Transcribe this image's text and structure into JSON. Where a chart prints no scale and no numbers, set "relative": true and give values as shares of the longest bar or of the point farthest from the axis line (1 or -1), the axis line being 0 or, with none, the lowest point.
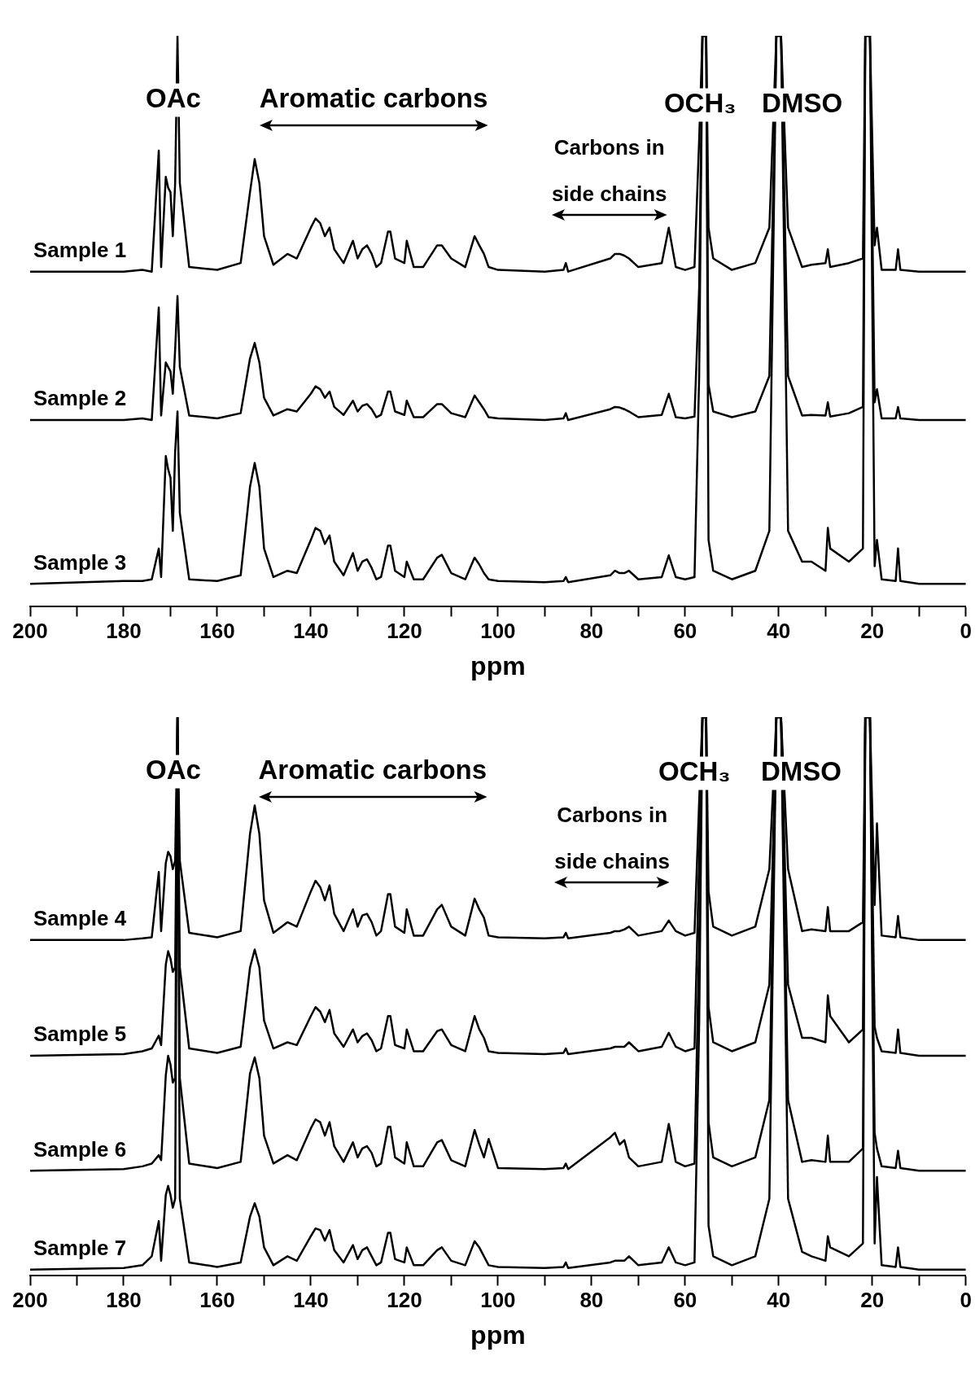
{
  "chart_data": [
    {
      "type": "line",
      "xlabel": "ppm",
      "relative": true,
      "xlim": [
        200,
        0
      ],
      "xticks": [
        200,
        {
          "value": 190,
          "label": null
        },
        180,
        {
          "value": 170,
          "label": null
        },
        160,
        {
          "value": 150,
          "label": null
        },
        140,
        {
          "value": 130,
          "label": null
        },
        120,
        {
          "value": 110,
          "label": null
        },
        100,
        {
          "value": 90,
          "label": null
        },
        80,
        {
          "value": 70,
          "label": null
        },
        60,
        {
          "value": 50,
          "label": null
        },
        40,
        {
          "value": 30,
          "label": null
        },
        20,
        {
          "value": 10,
          "label": null
        },
        0
      ],
      "annotations": [
        "OAc",
        "Aromatic carbons",
        "OCH₃",
        "DMSO",
        "Carbons in\nside chains"
      ],
      "x": [
        200,
        180,
        176,
        174,
        172.5,
        172,
        171,
        170.5,
        170,
        169.5,
        169,
        168.5,
        168,
        166,
        160,
        155,
        153,
        152,
        151,
        150,
        148,
        145,
        143,
        140,
        139,
        138,
        137,
        136,
        135,
        133,
        131,
        130,
        129,
        128,
        127,
        126,
        125,
        123.5,
        123,
        122,
        120,
        119.5,
        118,
        116,
        113,
        112,
        110,
        107,
        105,
        104,
        103,
        102,
        100,
        90,
        86,
        85.5,
        85,
        76,
        75,
        74,
        73,
        72,
        70,
        65,
        63.5,
        62,
        60,
        58,
        57,
        56.3,
        55.5,
        55,
        54,
        50,
        45,
        42,
        40.5,
        39.5,
        38,
        35,
        33,
        30,
        29.5,
        29,
        25,
        22,
        21.5,
        21,
        20.5,
        19.5,
        19,
        18,
        15,
        14.5,
        14,
        10,
        0
      ],
      "series": [
        {
          "name": "Sample 1",
          "color": "#000000",
          "values": [
            0.587,
            0.587,
            0.59,
            0.587,
            0.799,
            0.595,
            0.753,
            0.734,
            0.726,
            0.649,
            0.742,
            1,
            0.742,
            0.595,
            0.59,
            0.602,
            0.726,
            0.784,
            0.742,
            0.649,
            0.599,
            0.618,
            0.61,
            0.664,
            0.68,
            0.672,
            0.649,
            0.664,
            0.626,
            0.602,
            0.641,
            0.61,
            0.626,
            0.633,
            0.618,
            0.595,
            0.602,
            0.657,
            0.657,
            0.61,
            0.602,
            0.641,
            0.595,
            0.595,
            0.633,
            0.633,
            0.61,
            0.595,
            0.649,
            0.633,
            0.618,
            0.595,
            0.59,
            0.587,
            0.59,
            0.602,
            0.587,
            0.61,
            0.618,
            0.618,
            0.615,
            0.61,
            0.595,
            0.602,
            0.664,
            0.595,
            0.59,
            0.595,
            0.819,
            1,
            1,
            0.664,
            0.61,
            0.59,
            0.602,
            0.664,
            1,
            1,
            0.664,
            0.595,
            0.599,
            0.602,
            0.626,
            0.595,
            0.602,
            0.61,
            1,
            1,
            1,
            0.633,
            0.664,
            0.59,
            0.59,
            0.626,
            0.59,
            0.587,
            0.587
          ]
        },
        {
          "name": "Sample 2",
          "color": "#000000",
          "values": [
            0.327,
            0.327,
            0.33,
            0.327,
            0.524,
            0.335,
            0.428,
            0.42,
            0.412,
            0.373,
            0.451,
            0.544,
            0.42,
            0.335,
            0.33,
            0.339,
            0.435,
            0.462,
            0.428,
            0.366,
            0.335,
            0.346,
            0.342,
            0.373,
            0.386,
            0.381,
            0.366,
            0.377,
            0.35,
            0.336,
            0.361,
            0.342,
            0.352,
            0.355,
            0.346,
            0.332,
            0.336,
            0.377,
            0.377,
            0.342,
            0.336,
            0.361,
            0.332,
            0.332,
            0.355,
            0.355,
            0.339,
            0.332,
            0.37,
            0.358,
            0.346,
            0.332,
            0.33,
            0.327,
            0.33,
            0.339,
            0.327,
            0.346,
            0.35,
            0.349,
            0.346,
            0.342,
            0.332,
            0.336,
            0.373,
            0.332,
            0.33,
            0.333,
            0.559,
            1,
            1,
            0.389,
            0.342,
            0.332,
            0.342,
            0.404,
            1,
            1,
            0.404,
            0.335,
            0.336,
            0.335,
            0.358,
            0.333,
            0.339,
            0.35,
            1,
            1,
            1,
            0.358,
            0.381,
            0.33,
            0.33,
            0.35,
            0.33,
            0.327,
            0.327
          ]
        },
        {
          "name": "Sample 3",
          "color": "#000000",
          "values": [
            0.04,
            0.045,
            0.045,
            0.048,
            0.102,
            0.052,
            0.264,
            0.241,
            0.226,
            0.133,
            0.272,
            0.342,
            0.164,
            0.048,
            0.045,
            0.055,
            0.21,
            0.252,
            0.21,
            0.102,
            0.052,
            0.063,
            0.059,
            0.117,
            0.138,
            0.133,
            0.11,
            0.125,
            0.079,
            0.055,
            0.094,
            0.063,
            0.079,
            0.083,
            0.068,
            0.048,
            0.052,
            0.107,
            0.107,
            0.063,
            0.052,
            0.079,
            0.048,
            0.048,
            0.086,
            0.091,
            0.059,
            0.048,
            0.086,
            0.074,
            0.059,
            0.048,
            0.045,
            0.043,
            0.045,
            0.052,
            0.043,
            0.055,
            0.063,
            0.059,
            0.059,
            0.063,
            0.048,
            0.052,
            0.09,
            0.052,
            0.048,
            0.052,
            0.404,
            1,
            1,
            0.117,
            0.063,
            0.048,
            0.063,
            0.133,
            1,
            1,
            0.133,
            0.079,
            0.079,
            0.063,
            0.138,
            0.102,
            0.079,
            0.102,
            1,
            1,
            1,
            0.071,
            0.117,
            0.048,
            0.045,
            0.102,
            0.045,
            0.04,
            0.04
          ]
        }
      ]
    },
    {
      "type": "line",
      "xlabel": "ppm",
      "relative": true,
      "xlim": [
        200,
        0
      ],
      "xticks": [
        200,
        {
          "value": 190,
          "label": null
        },
        180,
        {
          "value": 170,
          "label": null
        },
        160,
        {
          "value": 150,
          "label": null
        },
        140,
        {
          "value": 130,
          "label": null
        },
        120,
        {
          "value": 110,
          "label": null
        },
        100,
        {
          "value": 90,
          "label": null
        },
        80,
        {
          "value": 70,
          "label": null
        },
        60,
        {
          "value": 50,
          "label": null
        },
        40,
        {
          "value": 30,
          "label": null
        },
        20,
        {
          "value": 10,
          "label": null
        },
        0
      ],
      "annotations": [
        "OAc",
        "Aromatic carbons",
        "OCH₃",
        "DMSO",
        "Carbons in\nside chains"
      ],
      "x": [
        200,
        180,
        176,
        174,
        172.5,
        172,
        171,
        170.5,
        170,
        169.5,
        169,
        168.5,
        168,
        166,
        160,
        155,
        153,
        152,
        151,
        150,
        148,
        145,
        143,
        140,
        139,
        138,
        137,
        136,
        135,
        133,
        131,
        130,
        129,
        128,
        127,
        126,
        125,
        123.5,
        123,
        122,
        120,
        119.5,
        118,
        116,
        113,
        112,
        110,
        107,
        105,
        104,
        103,
        102,
        100,
        90,
        86,
        85.5,
        85,
        76,
        75,
        74,
        73,
        72,
        70,
        65,
        63.5,
        62,
        60,
        58,
        57,
        56.3,
        55.5,
        55,
        54,
        50,
        45,
        42,
        40.5,
        39.5,
        38,
        35,
        33,
        30,
        29.5,
        29,
        25,
        22,
        21.5,
        21,
        20.5,
        19.5,
        19,
        18,
        15,
        14.5,
        14,
        10,
        0
      ],
      "series": [
        {
          "name": "Sample 4",
          "color": "#000000",
          "values": [
            0.601,
            0.601,
            0.604,
            0.606,
            0.723,
            0.617,
            0.739,
            0.759,
            0.751,
            0.728,
            0.743,
            1,
            0.743,
            0.614,
            0.606,
            0.617,
            0.791,
            0.842,
            0.791,
            0.672,
            0.614,
            0.633,
            0.625,
            0.688,
            0.707,
            0.696,
            0.672,
            0.699,
            0.648,
            0.617,
            0.656,
            0.625,
            0.645,
            0.648,
            0.633,
            0.609,
            0.617,
            0.683,
            0.683,
            0.625,
            0.614,
            0.656,
            0.609,
            0.609,
            0.656,
            0.664,
            0.625,
            0.609,
            0.675,
            0.656,
            0.641,
            0.609,
            0.606,
            0.604,
            0.606,
            0.614,
            0.604,
            0.614,
            0.617,
            0.617,
            0.62,
            0.625,
            0.609,
            0.617,
            0.636,
            0.617,
            0.609,
            0.614,
            0.85,
            1,
            1,
            0.688,
            0.625,
            0.609,
            0.625,
            0.728,
            1,
            1,
            0.728,
            0.617,
            0.62,
            0.617,
            0.66,
            0.617,
            0.617,
            0.633,
            1,
            1,
            1,
            0.664,
            0.81,
            0.609,
            0.606,
            0.644,
            0.606,
            0.601,
            0.601
          ]
        },
        {
          "name": "Sample 5",
          "color": "#000000",
          "values": [
            0.394,
            0.397,
            0.402,
            0.407,
            0.43,
            0.413,
            0.557,
            0.581,
            0.568,
            0.544,
            0.552,
            1,
            0.552,
            0.407,
            0.399,
            0.41,
            0.552,
            0.584,
            0.552,
            0.457,
            0.407,
            0.418,
            0.413,
            0.465,
            0.481,
            0.473,
            0.454,
            0.476,
            0.434,
            0.41,
            0.441,
            0.418,
            0.429,
            0.434,
            0.422,
            0.402,
            0.407,
            0.465,
            0.465,
            0.413,
            0.407,
            0.441,
            0.402,
            0.402,
            0.438,
            0.441,
            0.413,
            0.402,
            0.465,
            0.441,
            0.426,
            0.402,
            0.399,
            0.397,
            0.399,
            0.407,
            0.397,
            0.407,
            0.41,
            0.41,
            0.41,
            0.418,
            0.402,
            0.41,
            0.435,
            0.41,
            0.402,
            0.407,
            0.75,
            1,
            1,
            0.481,
            0.418,
            0.402,
            0.418,
            0.521,
            1,
            1,
            0.521,
            0.426,
            0.426,
            0.418,
            0.502,
            0.465,
            0.418,
            0.441,
            1,
            1,
            1,
            0.446,
            0.426,
            0.402,
            0.399,
            0.441,
            0.399,
            0.394,
            0.394
          ]
        },
        {
          "name": "Sample 6",
          "color": "#000000",
          "values": [
            0.188,
            0.191,
            0.196,
            0.201,
            0.216,
            0.207,
            0.359,
            0.394,
            0.378,
            0.346,
            0.354,
            1,
            0.354,
            0.201,
            0.193,
            0.204,
            0.362,
            0.391,
            0.354,
            0.251,
            0.201,
            0.216,
            0.207,
            0.264,
            0.28,
            0.275,
            0.251,
            0.275,
            0.232,
            0.204,
            0.239,
            0.212,
            0.228,
            0.232,
            0.22,
            0.196,
            0.201,
            0.267,
            0.267,
            0.212,
            0.201,
            0.239,
            0.196,
            0.196,
            0.239,
            0.243,
            0.207,
            0.196,
            0.261,
            0.235,
            0.212,
            0.245,
            0.193,
            0.191,
            0.193,
            0.201,
            0.191,
            0.248,
            0.256,
            0.235,
            0.243,
            0.212,
            0.196,
            0.204,
            0.272,
            0.204,
            0.196,
            0.201,
            0.6,
            1,
            1,
            0.275,
            0.212,
            0.196,
            0.212,
            0.315,
            1,
            1,
            0.315,
            0.204,
            0.207,
            0.204,
            0.251,
            0.204,
            0.204,
            0.228,
            1,
            1,
            1,
            0.256,
            0.228,
            0.196,
            0.193,
            0.224,
            0.193,
            0.188,
            0.188
          ]
        },
        {
          "name": "Sample 7",
          "color": "#000000",
          "values": [
            0.011,
            0.014,
            0.019,
            0.035,
            0.098,
            0.027,
            0.145,
            0.161,
            0.145,
            0.122,
            0.138,
            1,
            0.138,
            0.024,
            0.016,
            0.024,
            0.106,
            0.13,
            0.106,
            0.051,
            0.019,
            0.035,
            0.027,
            0.071,
            0.085,
            0.082,
            0.063,
            0.082,
            0.046,
            0.024,
            0.055,
            0.03,
            0.046,
            0.051,
            0.035,
            0.019,
            0.024,
            0.077,
            0.077,
            0.03,
            0.024,
            0.051,
            0.019,
            0.019,
            0.046,
            0.051,
            0.027,
            0.019,
            0.062,
            0.051,
            0.035,
            0.019,
            0.016,
            0.014,
            0.016,
            0.024,
            0.014,
            0.024,
            0.027,
            0.027,
            0.027,
            0.035,
            0.019,
            0.024,
            0.051,
            0.024,
            0.019,
            0.024,
            0.45,
            1,
            1,
            0.09,
            0.035,
            0.019,
            0.035,
            0.138,
            1,
            1,
            0.138,
            0.043,
            0.035,
            0.027,
            0.071,
            0.051,
            0.035,
            0.058,
            1,
            1,
            1,
            0.058,
            0.177,
            0.019,
            0.016,
            0.051,
            0.016,
            0.011,
            0.011
          ]
        }
      ]
    }
  ]
}
